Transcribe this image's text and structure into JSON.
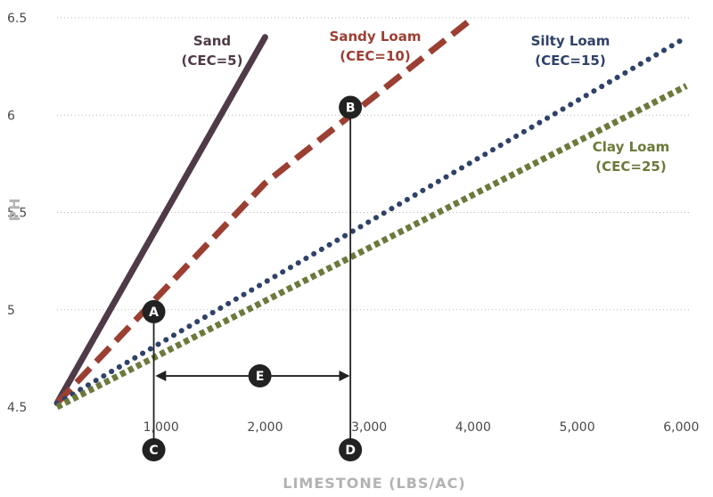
{
  "chart_data": {
    "type": "line",
    "xlabel": "LIMESTONE (LBS/AC)",
    "ylabel": "PH",
    "xlim": [
      0,
      6100
    ],
    "ylim": [
      4.5,
      6.5
    ],
    "x_ticks": [
      1000,
      2000,
      3000,
      4000,
      5000,
      6000
    ],
    "x_tick_labels": [
      "1,000",
      "2,000",
      "3,000",
      "4,000",
      "5,000",
      "6,000"
    ],
    "y_ticks": [
      4.5,
      5,
      5.5,
      6,
      6.5
    ],
    "y_tick_labels": [
      "4.5",
      "5",
      "5.5",
      "6",
      "6.5"
    ],
    "grid": "horizontal-dotted",
    "series": [
      {
        "name_line1": "Sand",
        "name_line2": "(CEC=5)",
        "color": "#4f3a48",
        "style": "solid",
        "points": [
          [
            0,
            4.52
          ],
          [
            2000,
            6.4
          ]
        ]
      },
      {
        "name_line1": "Sandy Loam",
        "name_line2": "(CEC=10)",
        "color": "#9c3f33",
        "style": "dashed",
        "points": [
          [
            0,
            4.52
          ],
          [
            2000,
            5.65
          ],
          [
            4000,
            6.5
          ]
        ]
      },
      {
        "name_line1": "Silty Loam",
        "name_line2": "(CEC=15)",
        "color": "#2f4268",
        "style": "dotted",
        "points": [
          [
            0,
            4.52
          ],
          [
            6050,
            6.4
          ]
        ]
      },
      {
        "name_line1": "Clay Loam",
        "name_line2": "(CEC=25)",
        "color": "#6b7a3b",
        "style": "square-dotted",
        "points": [
          [
            0,
            4.5
          ],
          [
            6050,
            6.15
          ]
        ]
      }
    ],
    "annotations": {
      "markers": [
        {
          "letter": "A",
          "x": 930,
          "y": 4.99
        },
        {
          "letter": "B",
          "x": 2820,
          "y": 6.04
        },
        {
          "letter": "C",
          "x": 930,
          "y": "below-axis"
        },
        {
          "letter": "D",
          "x": 2820,
          "y": "below-axis"
        },
        {
          "letter": "E",
          "x": 1950,
          "y": 4.66
        }
      ],
      "vertical_lines_x": [
        930,
        2820
      ],
      "arrow": {
        "from_x": 980,
        "to_x": 2780,
        "y": 4.66
      }
    }
  }
}
